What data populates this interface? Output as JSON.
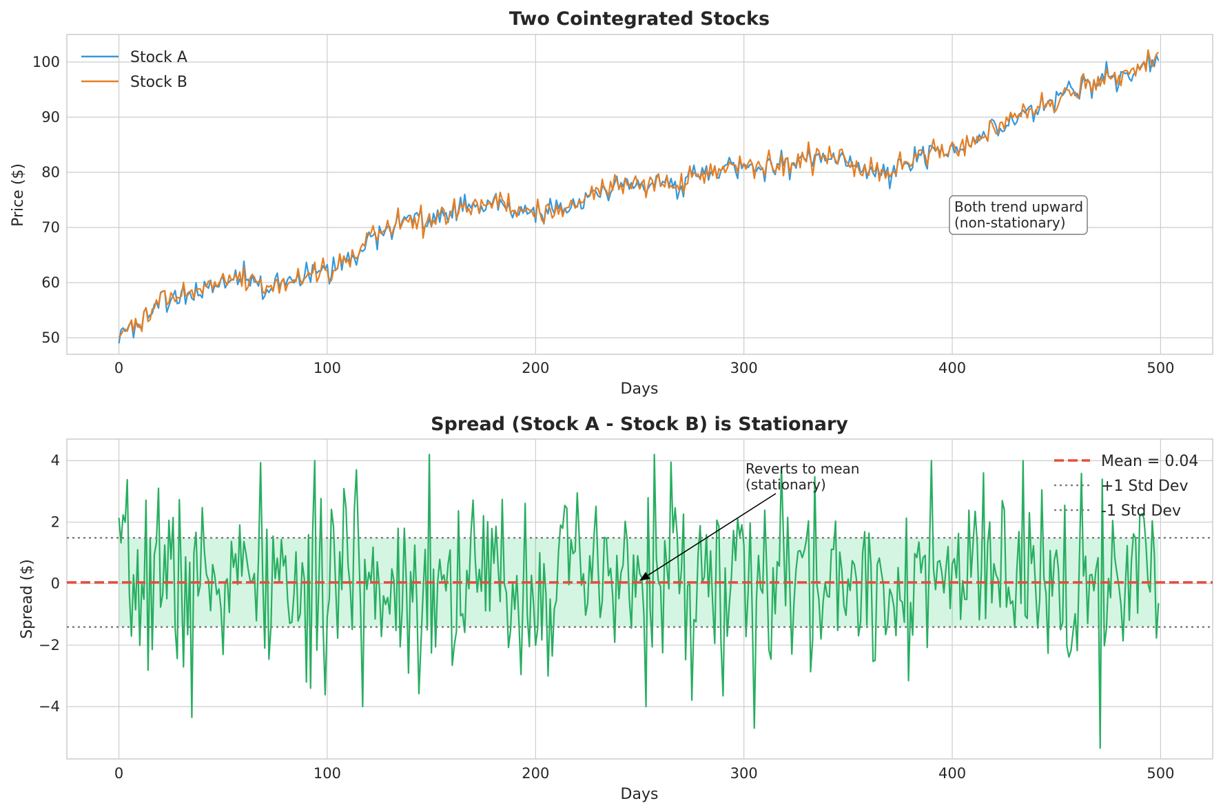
{
  "chart_data": [
    {
      "type": "line",
      "title": "Two Cointegrated Stocks",
      "xlabel": "Days",
      "ylabel": "Price ($)",
      "xlim": [
        -25,
        525
      ],
      "ylim": [
        47,
        105
      ],
      "xticks": [
        0,
        100,
        200,
        300,
        400,
        500
      ],
      "yticks": [
        50,
        60,
        70,
        80,
        90,
        100
      ],
      "grid": true,
      "legend_position": "top-left",
      "annotation": {
        "text": [
          "Both trend upward",
          "(non-stationary)"
        ],
        "x": 400,
        "y": 70
      },
      "trend": {
        "x": [
          0,
          10,
          20,
          30,
          40,
          50,
          60,
          70,
          80,
          90,
          100,
          110,
          120,
          130,
          140,
          150,
          160,
          170,
          180,
          190,
          200,
          210,
          220,
          230,
          240,
          250,
          260,
          270,
          280,
          290,
          300,
          310,
          320,
          330,
          340,
          350,
          360,
          370,
          380,
          390,
          400,
          410,
          420,
          430,
          440,
          450,
          460,
          470,
          480,
          490,
          500
        ],
        "y": [
          50.5,
          53,
          56,
          57.5,
          58.5,
          60.5,
          61,
          59.5,
          60,
          61.5,
          62.5,
          63.5,
          68,
          70,
          72,
          71,
          72.5,
          74.5,
          74,
          73,
          73.5,
          73,
          74,
          76,
          78,
          77.5,
          78,
          78,
          80,
          80.5,
          81,
          82,
          81.5,
          82,
          83,
          82,
          80.5,
          80,
          82,
          83.5,
          84,
          86,
          88,
          90,
          91.5,
          93,
          95.5,
          96.5,
          97,
          99,
          102
        ]
      },
      "series": [
        {
          "name": "Stock A",
          "color": "#3498db",
          "noise_amplitude": 1.2,
          "seed": 11
        },
        {
          "name": "Stock B",
          "color": "#e67e22",
          "noise_amplitude": 1.2,
          "seed": 29
        }
      ]
    },
    {
      "type": "line",
      "title": "Spread (Stock A - Stock B) is Stationary",
      "xlabel": "Days",
      "ylabel": "Spread ($)",
      "xlim": [
        -25,
        525
      ],
      "ylim": [
        -5.7,
        4.7
      ],
      "xticks": [
        0,
        100,
        200,
        300,
        400,
        500
      ],
      "yticks": [
        -4,
        -2,
        0,
        2,
        4
      ],
      "grid": true,
      "legend_position": "top-right",
      "mean": 0.04,
      "std": 1.45,
      "band_color": "#2ecc71",
      "spread_color": "#27ae60",
      "mean_color": "#e74c3c",
      "std_color": "#7f7f7f",
      "legend": [
        "Mean = 0.04",
        "+1 Std Dev",
        "-1 Std Dev"
      ],
      "annotation": {
        "text": [
          "Reverts to mean",
          "(stationary)"
        ],
        "text_x": 300,
        "text_y": 3.1,
        "arrow_x": 250,
        "arrow_y": 0.1
      },
      "series": [
        {
          "name": "Spread",
          "n_points": 500,
          "seed": 7,
          "spread_sd": 1.45,
          "spikes": [
            [
              19,
              3.1
            ],
            [
              35,
              -4.35
            ],
            [
              90,
              -3.2
            ],
            [
              92,
              -3.4
            ],
            [
              114,
              3.7
            ],
            [
              149,
              4.2
            ],
            [
              257,
              4.2
            ],
            [
              265,
              3.95
            ],
            [
              290,
              -3.65
            ],
            [
              305,
              -4.7
            ],
            [
              415,
              3.6
            ],
            [
              490,
              2.2
            ],
            [
              471,
              -5.35
            ]
          ]
        }
      ]
    }
  ]
}
